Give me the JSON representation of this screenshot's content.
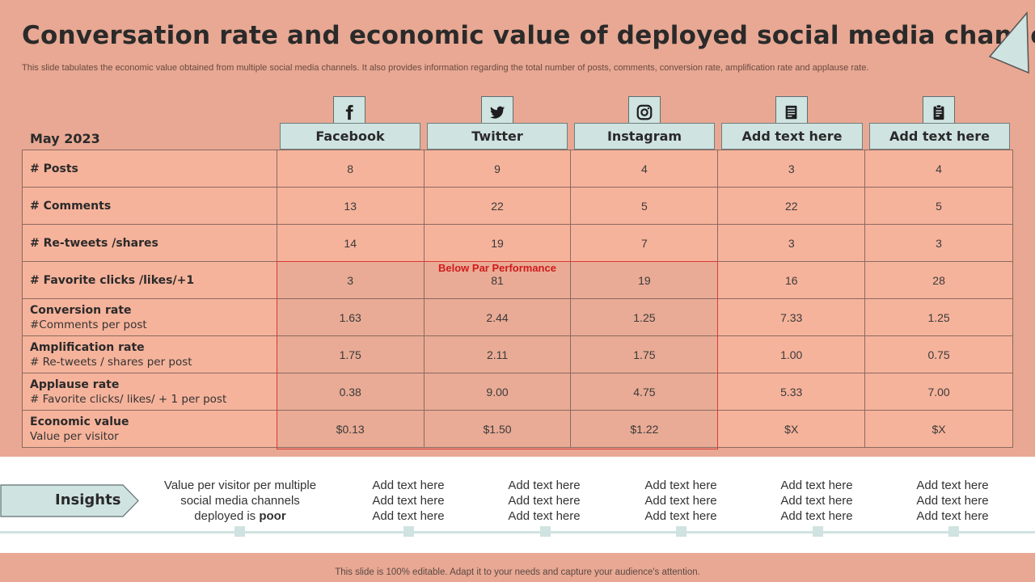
{
  "title": "Conversation rate and economic value of deployed social media channels",
  "subtitle": "This slide tabulates the economic value obtained from multiple social media channels. It also provides information regarding the total number of posts, comments, conversion rate, amplification rate and applause rate.",
  "month": "May 2023",
  "channels": [
    {
      "name": "Facebook",
      "icon": "facebook-icon"
    },
    {
      "name": "Twitter",
      "icon": "twitter-icon"
    },
    {
      "name": "Instagram",
      "icon": "instagram-icon"
    },
    {
      "name": "Add text here",
      "icon": "document-icon"
    },
    {
      "name": "Add text here",
      "icon": "clipboard-icon"
    }
  ],
  "rows": [
    {
      "label": "# Posts",
      "sub": "",
      "values": [
        "8",
        "9",
        "4",
        "3",
        "4"
      ]
    },
    {
      "label": "# Comments",
      "sub": "",
      "values": [
        "13",
        "22",
        "5",
        "22",
        "5"
      ]
    },
    {
      "label": "# Re-tweets /shares",
      "sub": "",
      "values": [
        "14",
        "19",
        "7",
        "3",
        "3"
      ]
    },
    {
      "label": "# Favorite clicks /likes/+1",
      "sub": "",
      "values": [
        "3",
        "81",
        "19",
        "16",
        "28"
      ]
    },
    {
      "label": "Conversion rate",
      "sub": "#Comments per post",
      "values": [
        "1.63",
        "2.44",
        "1.25",
        "7.33",
        "1.25"
      ]
    },
    {
      "label": "Amplification rate",
      "sub": "# Re-tweets / shares per post",
      "values": [
        "1.75",
        "2.11",
        "1.75",
        "1.00",
        "0.75"
      ]
    },
    {
      "label": "Applause rate",
      "sub": "# Favorite clicks/ likes/ + 1 per post",
      "values": [
        "0.38",
        "9.00",
        "4.75",
        "5.33",
        "7.00"
      ]
    },
    {
      "label": "Economic value",
      "sub": "Value per visitor",
      "values": [
        "$0.13",
        "$1.50",
        "$1.22",
        "$X",
        "$X"
      ]
    }
  ],
  "highlight": {
    "label": "Below Par Performance",
    "color": "#d11a1a"
  },
  "insights": {
    "label": "Insights",
    "first": {
      "text": "Value per visitor per multiple social media channels deployed is",
      "emphasis": "poor"
    },
    "placeholder": [
      "Add text here",
      "Add text here",
      "Add text here"
    ]
  },
  "footer": "This slide is 100% editable. Adapt it to your needs and capture your audience's attention.",
  "colors": {
    "background": "#e8a893",
    "cell": "#f6b39b",
    "accent": "#cfe3e1"
  }
}
